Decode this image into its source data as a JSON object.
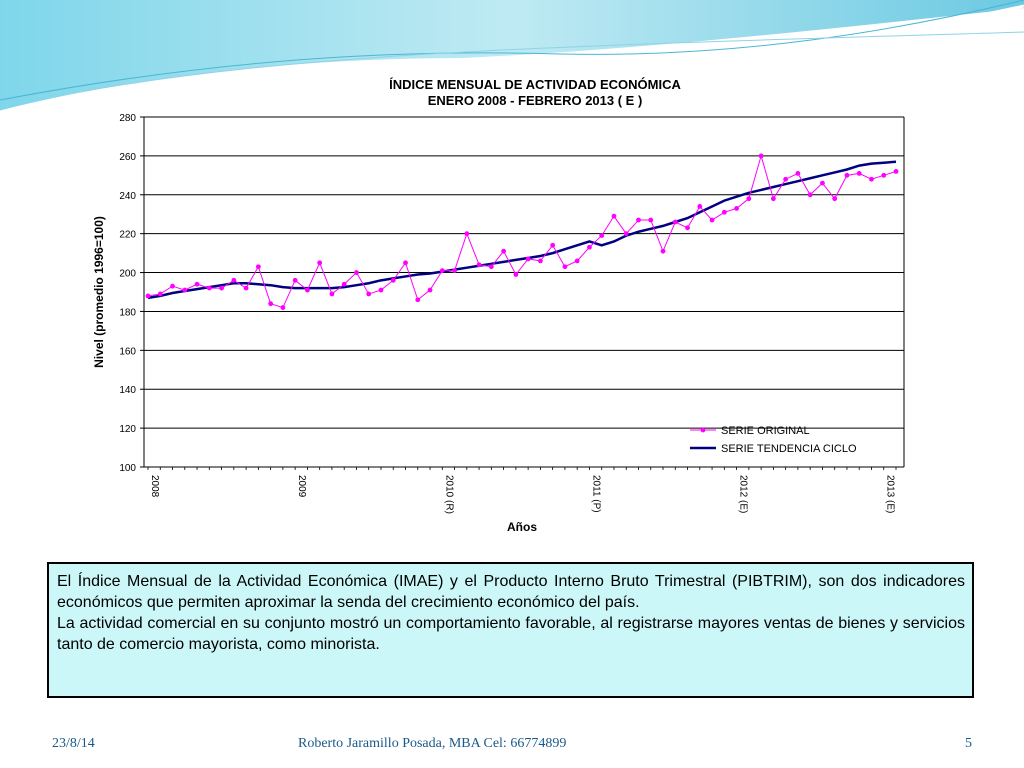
{
  "slide": {
    "paragraph1": "El Índice Mensual de la Actividad Económica (IMAE) y el Producto  Interno Bruto Trimestral (PIBTRIM), son dos indicadores económicos que permiten aproximar la senda del crecimiento económico del país.",
    "paragraph2": "La actividad comercial en su conjunto mostró un comportamiento favorable, al registrarse mayores ventas de bienes y servicios tanto de comercio mayorista, como minorista.",
    "footer_date": "23/8/14",
    "footer_author": "Roberto Jaramillo Posada, MBA Cel: 66774899",
    "footer_page": "5"
  },
  "colors": {
    "original": "#ff00ff",
    "trend": "#000080",
    "accent": "#1a5a8a",
    "box": "#ccf7f8"
  },
  "chart_data": {
    "type": "line",
    "title": "ÍNDICE MENSUAL DE ACTIVIDAD ECONÓMICA",
    "subtitle": "ENERO 2008 - FEBRERO  2013 ( E )",
    "xlabel": "Años",
    "ylabel": "Nivel (promedio 1996=100)",
    "ylim": [
      100,
      280
    ],
    "yticks": [
      100,
      120,
      140,
      160,
      180,
      200,
      220,
      240,
      260,
      280
    ],
    "grid": true,
    "legend_position": "bottom-right",
    "xtick_labels": [
      {
        "label": "2008",
        "month_index": 0
      },
      {
        "label": "2009",
        "month_index": 12
      },
      {
        "label": "2010 (R)",
        "month_index": 24
      },
      {
        "label": "2011 (P)",
        "month_index": 36
      },
      {
        "label": "2012 (E)",
        "month_index": 48
      },
      {
        "label": "2013 (E)",
        "month_index": 60
      }
    ],
    "series": [
      {
        "name": "SERIE ORIGINAL",
        "marker": true,
        "values": [
          188,
          189,
          193,
          191,
          194,
          192,
          192,
          196,
          192,
          203,
          184,
          182,
          196,
          191,
          205,
          189,
          194,
          200,
          189,
          191,
          196,
          205,
          186,
          191,
          201,
          201,
          220,
          204,
          203,
          211,
          199,
          207,
          206,
          214,
          203,
          206,
          213,
          219,
          229,
          220,
          227,
          227,
          211,
          226,
          223,
          234,
          227,
          231,
          233,
          238,
          260,
          238,
          248,
          251,
          240,
          246,
          238,
          250,
          251,
          248,
          250,
          252
        ]
      },
      {
        "name": "SERIE TENDENCIA CICLO",
        "marker": false,
        "values": [
          187,
          188,
          189.5,
          190.5,
          191.5,
          192.5,
          193.5,
          194.5,
          194.5,
          194,
          193.5,
          192.5,
          192,
          192,
          192,
          192,
          192.5,
          193.5,
          194.5,
          196,
          197,
          198,
          199,
          199.5,
          200.5,
          201.5,
          202.5,
          203.5,
          204.5,
          205.5,
          206.5,
          207.5,
          208.5,
          210,
          212,
          214,
          216,
          214,
          216,
          219,
          221,
          222.5,
          224,
          226,
          228,
          231,
          234,
          237,
          239,
          241,
          242.5,
          244,
          245.5,
          247,
          248.5,
          250,
          251.5,
          253,
          255,
          256,
          256.5,
          257
        ]
      }
    ]
  }
}
